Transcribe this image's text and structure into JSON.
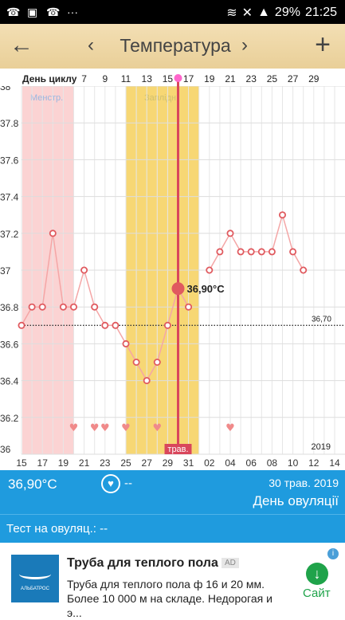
{
  "status": {
    "battery": "29%",
    "time": "21:25",
    "icons": [
      "viber-icon",
      "image-icon",
      "viber-icon",
      "more-icon"
    ]
  },
  "appbar": {
    "title": "Температура",
    "back": "←",
    "prev": "‹",
    "next": "›",
    "add": "+"
  },
  "chart_data": {
    "type": "line",
    "day_label": "День циклу",
    "cycle_ticks": [
      "7",
      "9",
      "11",
      "13",
      "15",
      "17",
      "19",
      "21",
      "23",
      "25",
      "27",
      "29"
    ],
    "date_ticks": [
      "15",
      "17",
      "19",
      "21",
      "23",
      "25",
      "27",
      "29",
      "31",
      "02",
      "04",
      "06",
      "08",
      "10",
      "12",
      "14"
    ],
    "y_ticks": [
      "36",
      "36.2",
      "36.4",
      "36.6",
      "36.8",
      "37",
      "37.2",
      "37.4",
      "37.6",
      "37.8",
      "38"
    ],
    "ylim": [
      36,
      38
    ],
    "x_dates": [
      "15",
      "16",
      "17",
      "18",
      "19",
      "20",
      "21",
      "22",
      "23",
      "24",
      "25",
      "26",
      "27",
      "28",
      "29",
      "30",
      "31",
      "01",
      "02",
      "03",
      "04",
      "05",
      "06",
      "07",
      "08",
      "09",
      "10",
      "11"
    ],
    "values": [
      36.7,
      36.8,
      36.8,
      37.2,
      36.8,
      36.8,
      37.0,
      36.8,
      36.7,
      36.7,
      36.6,
      36.5,
      36.4,
      36.5,
      36.7,
      36.9,
      36.8,
      null,
      37.0,
      37.1,
      37.2,
      37.1,
      37.1,
      37.1,
      37.1,
      37.3,
      37.1,
      37.0
    ],
    "hearts_on_dates": [
      "20",
      "22",
      "23",
      "25",
      "28",
      "04"
    ],
    "selected": {
      "date": "30",
      "value": 36.9,
      "label": "36,90°C"
    },
    "reference_value": 36.7,
    "reference_label": "36,70",
    "menstr_label": "Менстр.",
    "fertile_label": "Заплідн.",
    "month_marker": "трав.",
    "year_label": "2019",
    "colors": {
      "menstr": "#fbd3d3",
      "fertile": "#f7d774",
      "line": "#f4a6a6",
      "point": "#e05a5f",
      "cursor": "#d9475c",
      "heart": "#f08a8a"
    }
  },
  "info": {
    "temp": "36,90°C",
    "heart": "♥",
    "dash": "--",
    "date": "30 трав. 2019",
    "ovulation": "День овуляції"
  },
  "test": {
    "label": "Тест на овуляц.: --"
  },
  "ad": {
    "headline": "Труба для теплого пола",
    "badge": "AD",
    "body": "Труба для теплого пола ф 16 и 20 мм. Более 10 000 м на складе. Недорогая и э...",
    "brand": "АЛЬБАТРОС",
    "cta": "Сайт",
    "info_mark": "i",
    "cta_arrow": "↓"
  }
}
